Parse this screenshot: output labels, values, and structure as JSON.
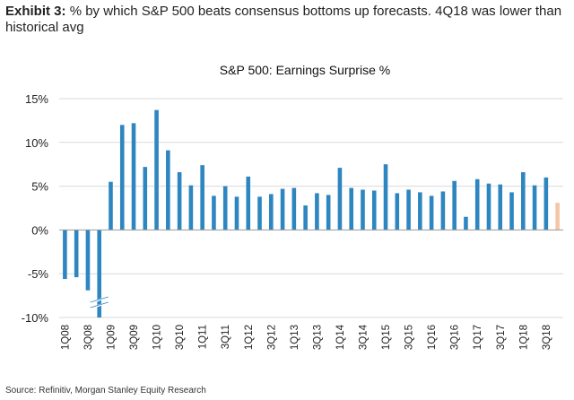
{
  "header": {
    "exhibit_label": "Exhibit 3:",
    "exhibit_text": "% by which S&P 500 beats consensus bottoms up forecasts. 4Q18 was lower than historical avg"
  },
  "footer": {
    "source": "Source: Refinitiv, Morgan Stanley Equity Research"
  },
  "colors": {
    "bar": "#2E86C1",
    "bar_estimate": "#F5C6A5",
    "grid": "#D9D9D9",
    "axis": "#999999"
  },
  "chart_data": {
    "type": "bar",
    "title": "S&P 500: Earnings Surprise %",
    "xlabel": "",
    "ylabel": "",
    "ylim": [
      -10,
      15
    ],
    "yticks": [
      15,
      10,
      5,
      0,
      -5,
      -10
    ],
    "ytick_labels": [
      "15%",
      "10%",
      "5%",
      "0%",
      "-5%",
      "-10%"
    ],
    "grid": true,
    "axis_break_on": "3Q08",
    "highlight_last_as": "4Q18",
    "categories": [
      "1Q08",
      "2Q08",
      "3Q08",
      "4Q08",
      "1Q09",
      "2Q09",
      "3Q09",
      "4Q09",
      "1Q10",
      "2Q10",
      "3Q10",
      "4Q10",
      "1Q11",
      "2Q11",
      "3Q11",
      "4Q11",
      "1Q12",
      "2Q12",
      "3Q12",
      "4Q12",
      "1Q13",
      "2Q13",
      "3Q13",
      "4Q13",
      "1Q14",
      "2Q14",
      "3Q14",
      "4Q14",
      "1Q15",
      "2Q15",
      "3Q15",
      "4Q15",
      "1Q16",
      "2Q16",
      "3Q16",
      "4Q16",
      "1Q17",
      "2Q17",
      "3Q17",
      "4Q17",
      "1Q18",
      "2Q18",
      "3Q18",
      "4Q18"
    ],
    "x_tick_labels": [
      "1Q08",
      "3Q08",
      "1Q09",
      "3Q09",
      "1Q10",
      "3Q10",
      "1Q11",
      "3Q11",
      "1Q12",
      "3Q12",
      "1Q13",
      "3Q13",
      "1Q14",
      "3Q14",
      "1Q15",
      "3Q15",
      "1Q16",
      "3Q16",
      "1Q17",
      "3Q17",
      "1Q18",
      "3Q18"
    ],
    "values": [
      -5.6,
      -5.4,
      -6.9,
      -10.0,
      5.5,
      12.0,
      12.2,
      7.2,
      13.7,
      9.1,
      6.6,
      5.1,
      7.4,
      3.9,
      5.0,
      3.8,
      6.1,
      3.8,
      4.1,
      4.7,
      4.8,
      2.8,
      4.2,
      4.0,
      7.1,
      4.8,
      4.6,
      4.5,
      7.5,
      4.2,
      4.6,
      4.3,
      3.9,
      4.4,
      5.6,
      1.5,
      5.8,
      5.3,
      5.2,
      4.3,
      6.6,
      5.1,
      6.0,
      3.1
    ]
  }
}
